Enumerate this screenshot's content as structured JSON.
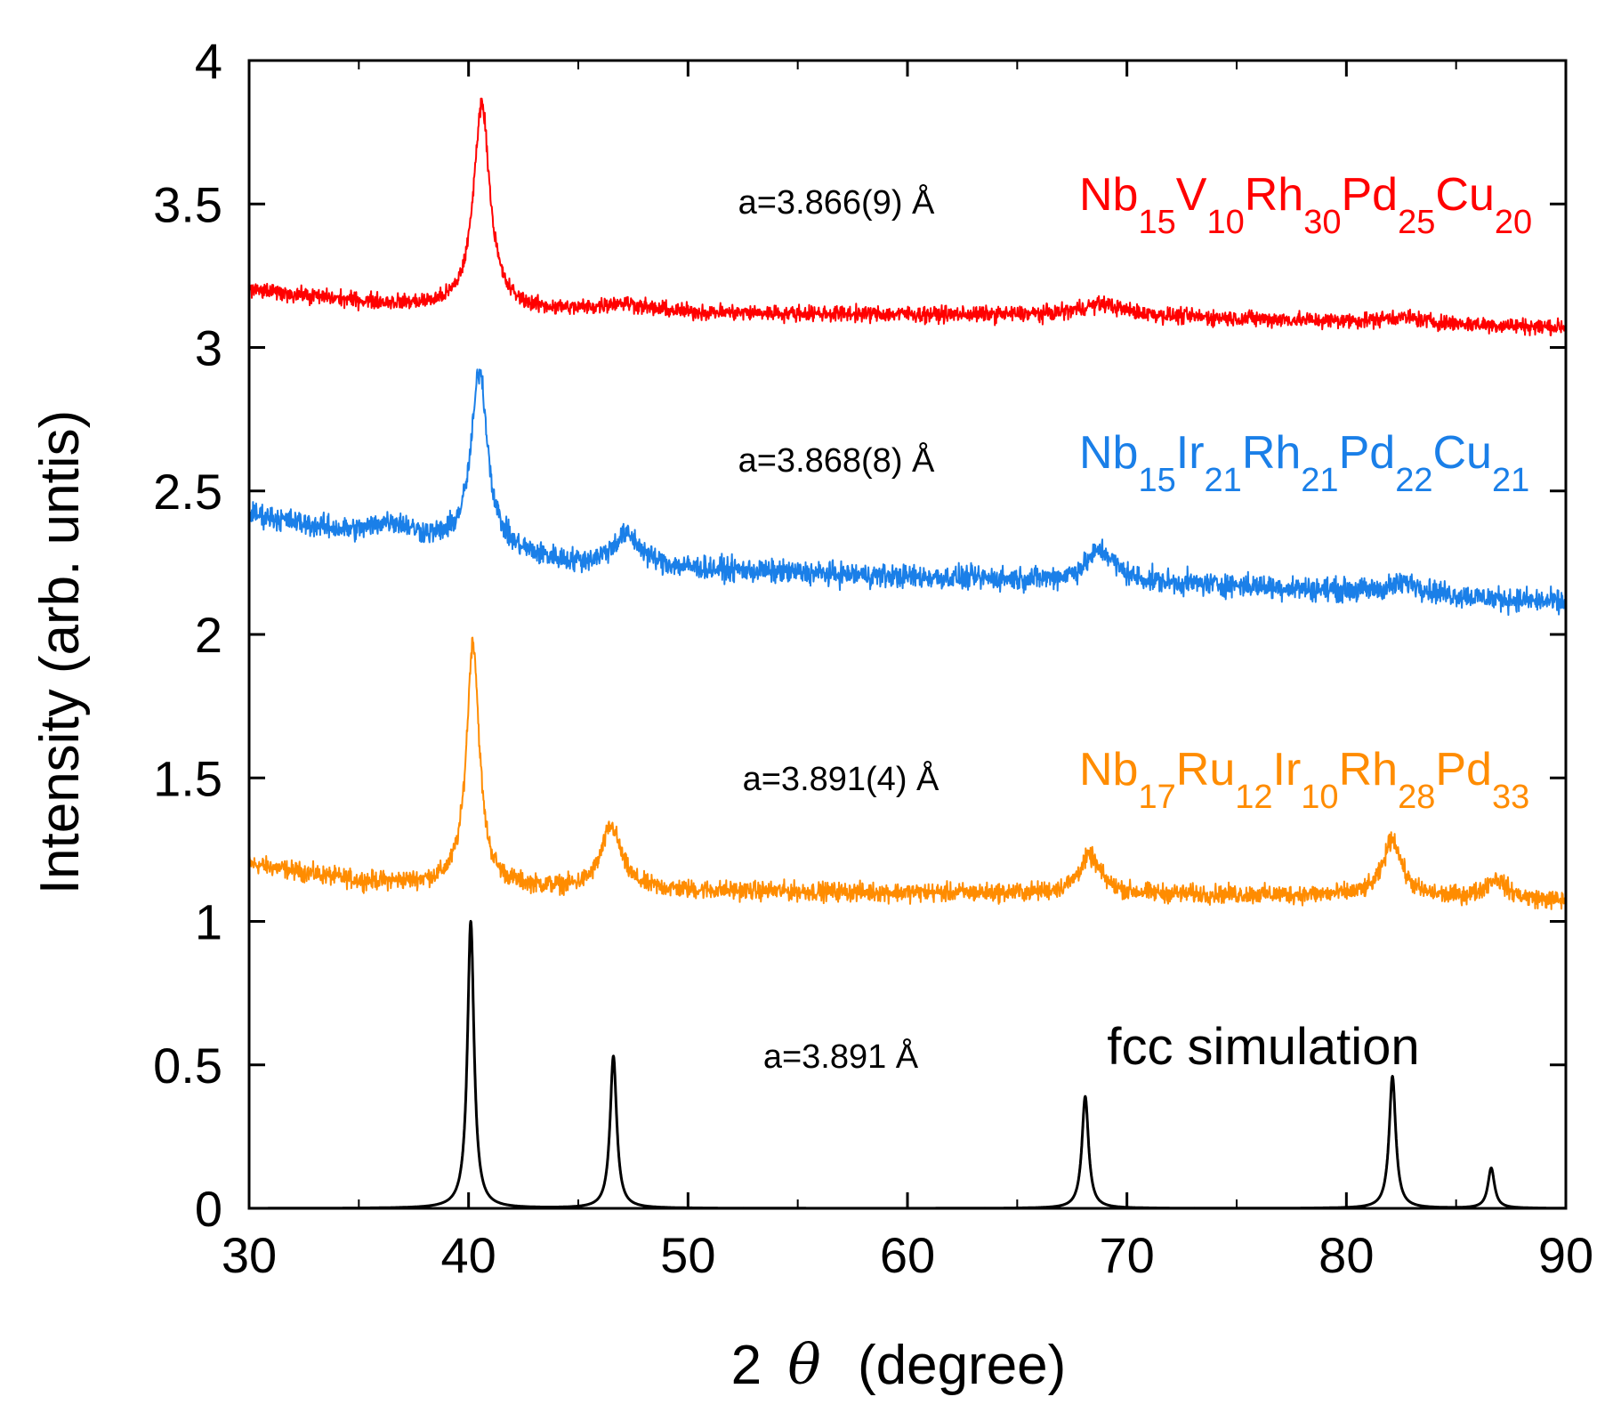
{
  "chart_data": {
    "type": "line",
    "title": "",
    "xlabel_prefix": "2",
    "xlabel_symbol": "θ",
    "xlabel_suffix": "(degree)",
    "ylabel": "Intensity (arb. untis)",
    "xlim": [
      30,
      90
    ],
    "ylim": [
      0,
      4
    ],
    "x_ticks": [
      30,
      40,
      50,
      60,
      70,
      80,
      90
    ],
    "y_ticks": [
      0,
      0.5,
      1,
      1.5,
      2,
      2.5,
      3,
      3.5,
      4
    ],
    "x_tick_labels": [
      "30",
      "40",
      "50",
      "60",
      "70",
      "80",
      "90"
    ],
    "y_tick_labels": [
      "0",
      "0.5",
      "1",
      "1.5",
      "2",
      "2.5",
      "3",
      "3.5",
      "4"
    ],
    "series": [
      {
        "name": "fcc simulation",
        "color": "#000000",
        "lattice": "a=3.891 Å",
        "label_parts": [
          {
            "text": "fcc simulation",
            "sub": ""
          }
        ],
        "noisy": false,
        "baseline": [
          [
            30,
            0.0
          ],
          [
            90,
            0.0
          ]
        ],
        "peaks": [
          {
            "x": 40.1,
            "height": 1.0,
            "width": 0.18
          },
          {
            "x": 46.6,
            "height": 0.53,
            "width": 0.18
          },
          {
            "x": 68.1,
            "height": 0.39,
            "width": 0.18
          },
          {
            "x": 82.1,
            "height": 0.46,
            "width": 0.18
          },
          {
            "x": 86.6,
            "height": 0.14,
            "width": 0.18
          }
        ]
      },
      {
        "name": "Nb17Ru12Ir10Rh28Pd33",
        "color": "#ff8c00",
        "lattice": "a=3.891(4) Å",
        "label_parts": [
          {
            "text": "Nb",
            "sub": "17"
          },
          {
            "text": "Ru",
            "sub": "12"
          },
          {
            "text": "Ir",
            "sub": "10"
          },
          {
            "text": "Rh",
            "sub": "28"
          },
          {
            "text": "Pd",
            "sub": "33"
          }
        ],
        "noisy": true,
        "noise": 0.02,
        "baseline": [
          [
            30,
            1.2
          ],
          [
            35,
            1.14
          ],
          [
            45,
            1.11
          ],
          [
            60,
            1.1
          ],
          [
            80,
            1.09
          ],
          [
            90,
            1.07
          ]
        ],
        "peaks": [
          {
            "x": 40.2,
            "height": 0.85,
            "width": 0.35
          },
          {
            "x": 46.5,
            "height": 0.22,
            "width": 0.55
          },
          {
            "x": 68.3,
            "height": 0.13,
            "width": 0.6
          },
          {
            "x": 82.1,
            "height": 0.2,
            "width": 0.5
          },
          {
            "x": 86.8,
            "height": 0.07,
            "width": 0.6
          }
        ]
      },
      {
        "name": "Nb15Ir21Rh21Pd22Cu21",
        "color": "#1a7fe8",
        "lattice": "a=3.868(8) Å",
        "label_parts": [
          {
            "text": "Nb",
            "sub": "15"
          },
          {
            "text": "Ir",
            "sub": "21"
          },
          {
            "text": "Rh",
            "sub": "21"
          },
          {
            "text": "Pd",
            "sub": "22"
          },
          {
            "text": "Cu",
            "sub": "21"
          }
        ],
        "noisy": true,
        "noise": 0.025,
        "baseline": [
          [
            30,
            2.42
          ],
          [
            35,
            2.34
          ],
          [
            40,
            2.3
          ],
          [
            45,
            2.24
          ],
          [
            60,
            2.2
          ],
          [
            75,
            2.17
          ],
          [
            90,
            2.11
          ]
        ],
        "peaks": [
          {
            "x": 36.5,
            "height": 0.06,
            "width": 1.2
          },
          {
            "x": 40.5,
            "height": 0.62,
            "width": 0.45
          },
          {
            "x": 47.2,
            "height": 0.11,
            "width": 0.8
          },
          {
            "x": 68.8,
            "height": 0.11,
            "width": 0.8
          },
          {
            "x": 82.8,
            "height": 0.04,
            "width": 1.0
          }
        ]
      },
      {
        "name": "Nb15V10Rh30Pd25Cu20",
        "color": "#ff0000",
        "lattice": "a=3.866(9) Å",
        "label_parts": [
          {
            "text": "Nb",
            "sub": "15"
          },
          {
            "text": "V",
            "sub": "10"
          },
          {
            "text": "Rh",
            "sub": "30"
          },
          {
            "text": "Pd",
            "sub": "25"
          },
          {
            "text": "Cu",
            "sub": "20"
          }
        ],
        "noisy": true,
        "noise": 0.017,
        "baseline": [
          [
            30,
            3.2
          ],
          [
            35,
            3.16
          ],
          [
            40,
            3.13
          ],
          [
            50,
            3.12
          ],
          [
            70,
            3.11
          ],
          [
            90,
            3.07
          ]
        ],
        "peaks": [
          {
            "x": 40.6,
            "height": 0.72,
            "width": 0.45
          },
          {
            "x": 47.0,
            "height": 0.03,
            "width": 1.2
          },
          {
            "x": 68.8,
            "height": 0.04,
            "width": 1.2
          },
          {
            "x": 82.5,
            "height": 0.02,
            "width": 1.2
          }
        ]
      }
    ]
  }
}
